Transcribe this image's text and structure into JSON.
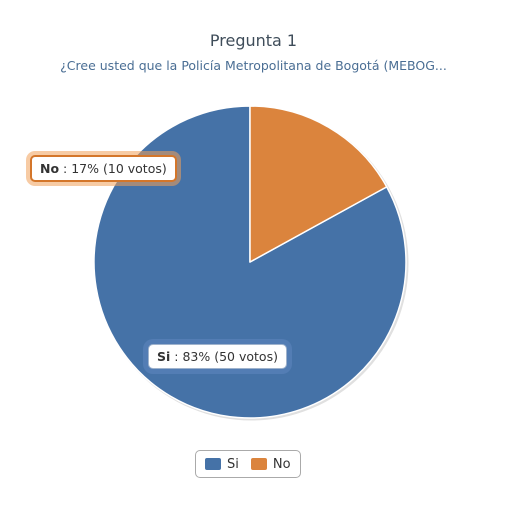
{
  "chart_data": {
    "type": "pie",
    "title": "Pregunta 1",
    "subtitle": "¿Cree usted que la Policía Metropolitana de Bogotá (MEBOG...",
    "categories": [
      "Si",
      "No"
    ],
    "values": [
      83,
      17
    ],
    "votes": [
      50,
      10
    ],
    "unit_percent": "%",
    "votes_word": "votos",
    "colors": [
      "#4572a7",
      "#db843d"
    ],
    "legend": {
      "placement": "bottom-center",
      "entries": [
        "Si",
        "No"
      ]
    }
  }
}
